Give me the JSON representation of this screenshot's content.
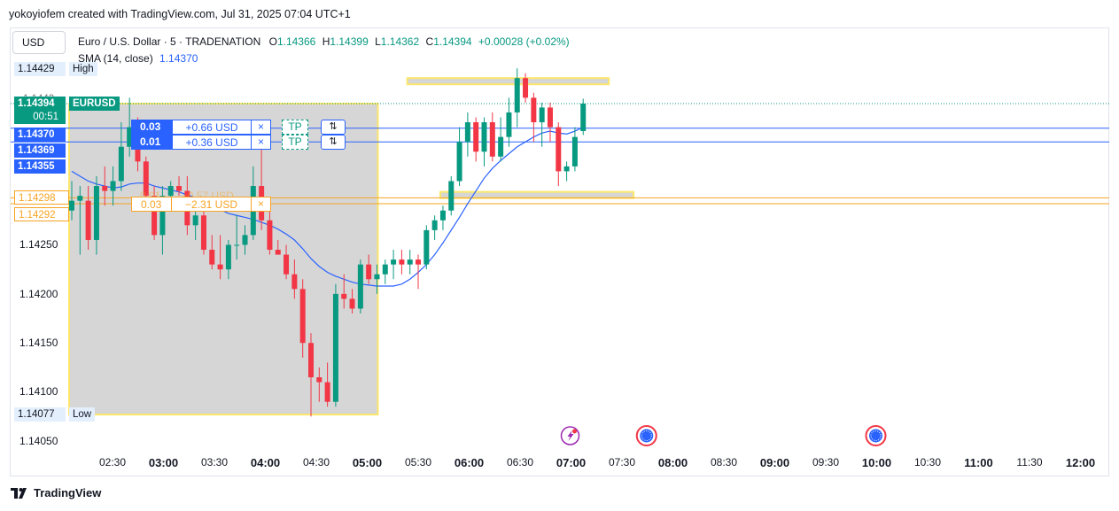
{
  "header": {
    "text": "yokoyiofem created with TradingView.com, Jul 31, 2025 07:04 UTC+1"
  },
  "toolbar": {
    "currency": "USD"
  },
  "legend": {
    "symbol": "Euro / U.S. Dollar · 5 · TRADENATION",
    "o_label": "O",
    "o_value": "1.14366",
    "h_label": "H",
    "h_value": "1.14399",
    "l_label": "L",
    "l_value": "1.14362",
    "c_label": "C",
    "c_value": "1.14394",
    "change": "+0.00028 (+0.02%)",
    "sma_label": "SMA (14, close)",
    "sma_value": "1.14370"
  },
  "price_scale": {
    "labels": [
      "1.14250",
      "1.14200",
      "1.14150",
      "1.14100",
      "1.14050"
    ],
    "high": {
      "price": "1.14429",
      "tag": "High"
    },
    "low": {
      "price": "1.14077",
      "tag": "Low"
    },
    "last": {
      "price": "1.14394",
      "countdown": "00:51",
      "tag": "EURUSD"
    },
    "sma": "1.14370",
    "blue_orders": [
      "1.14369",
      "1.14355"
    ],
    "orange_orders": [
      "1.14298",
      "1.14292"
    ],
    "hidden_label": "1.1442"
  },
  "orders": {
    "blue": [
      {
        "qty": "0.03",
        "pnl": "+0.66 USD",
        "close": "×",
        "tp": "TP",
        "rev": "⇅"
      },
      {
        "qty": "0.01",
        "pnl": "+0.36 USD",
        "close": "×",
        "tp": "TP",
        "rev": "⇅"
      }
    ],
    "orange": [
      {
        "qty": "0.03",
        "pnl": "−2.31 USD",
        "close": "×"
      }
    ],
    "orange_hidden": {
      "qty": "0.01",
      "pnl": "−0.57 USD"
    }
  },
  "time_axis": [
    "02:30",
    "03:00",
    "03:30",
    "04:00",
    "04:30",
    "05:00",
    "05:30",
    "06:00",
    "06:30",
    "07:00",
    "07:30",
    "08:00",
    "08:30",
    "09:00",
    "09:30",
    "10:00",
    "10:30",
    "11:00",
    "11:30",
    "12:00"
  ],
  "footer": {
    "brand": "TradingView"
  },
  "colors": {
    "up": "#089981",
    "down": "#f23645",
    "sma": "#2962ff",
    "order_blue": "#2962ff",
    "order_orange": "#f7a325",
    "zone": "#d6d6d6",
    "zone_border": "#fbe66b"
  },
  "chart_data": {
    "type": "candlestick",
    "symbol": "EURUSD",
    "interval": "5",
    "ylim": [
      1.1403,
      1.1446
    ],
    "indicators": [
      {
        "name": "SMA (14, close)",
        "last": 1.1437
      }
    ],
    "candles": [
      [
        1.14285,
        1.14315,
        1.14275,
        1.14295
      ],
      [
        1.14295,
        1.1431,
        1.1424,
        1.143
      ],
      [
        1.14295,
        1.1431,
        1.14245,
        1.14255
      ],
      [
        1.14255,
        1.1432,
        1.1424,
        1.1431
      ],
      [
        1.1431,
        1.1433,
        1.1429,
        1.14305
      ],
      [
        1.14305,
        1.1433,
        1.1429,
        1.14315
      ],
      [
        1.14315,
        1.14375,
        1.14305,
        1.1435
      ],
      [
        1.1435,
        1.144,
        1.1434,
        1.1437
      ],
      [
        1.1437,
        1.1438,
        1.14325,
        1.14335
      ],
      [
        1.14335,
        1.1434,
        1.1429,
        1.143
      ],
      [
        1.143,
        1.1431,
        1.14255,
        1.1426
      ],
      [
        1.1426,
        1.1431,
        1.1424,
        1.143
      ],
      [
        1.143,
        1.14315,
        1.1429,
        1.1431
      ],
      [
        1.1431,
        1.1432,
        1.143,
        1.14305
      ],
      [
        1.14305,
        1.1432,
        1.1426,
        1.1427
      ],
      [
        1.1427,
        1.1429,
        1.14255,
        1.1428
      ],
      [
        1.1428,
        1.14295,
        1.1424,
        1.14245
      ],
      [
        1.14245,
        1.1426,
        1.14225,
        1.1423
      ],
      [
        1.1423,
        1.1426,
        1.14215,
        1.14225
      ],
      [
        1.14225,
        1.14255,
        1.14215,
        1.1425
      ],
      [
        1.1425,
        1.1428,
        1.14235,
        1.1425
      ],
      [
        1.1425,
        1.1427,
        1.1424,
        1.1426
      ],
      [
        1.1426,
        1.1433,
        1.14255,
        1.1431
      ],
      [
        1.1431,
        1.1436,
        1.14265,
        1.14275
      ],
      [
        1.14275,
        1.14285,
        1.1424,
        1.14245
      ],
      [
        1.14245,
        1.14255,
        1.1424,
        1.1424
      ],
      [
        1.1424,
        1.1425,
        1.14215,
        1.1422
      ],
      [
        1.1422,
        1.14235,
        1.14195,
        1.14205
      ],
      [
        1.14205,
        1.14215,
        1.14135,
        1.1415
      ],
      [
        1.1415,
        1.1416,
        1.14075,
        1.14115
      ],
      [
        1.14115,
        1.14125,
        1.1409,
        1.1411
      ],
      [
        1.1411,
        1.1413,
        1.14085,
        1.1409
      ],
      [
        1.1409,
        1.1421,
        1.14085,
        1.142
      ],
      [
        1.142,
        1.1422,
        1.14185,
        1.14195
      ],
      [
        1.14195,
        1.14205,
        1.1418,
        1.14185
      ],
      [
        1.14185,
        1.14235,
        1.1418,
        1.1423
      ],
      [
        1.1423,
        1.1424,
        1.1421,
        1.14215
      ],
      [
        1.14215,
        1.1423,
        1.142,
        1.1422
      ],
      [
        1.1422,
        1.14235,
        1.1421,
        1.1423
      ],
      [
        1.1423,
        1.14245,
        1.14215,
        1.14235
      ],
      [
        1.14235,
        1.14245,
        1.1422,
        1.1423
      ],
      [
        1.1423,
        1.14245,
        1.1422,
        1.14235
      ],
      [
        1.14235,
        1.1424,
        1.14205,
        1.1423
      ],
      [
        1.1423,
        1.1427,
        1.14225,
        1.14265
      ],
      [
        1.14265,
        1.1428,
        1.14255,
        1.14275
      ],
      [
        1.14275,
        1.1429,
        1.14265,
        1.14285
      ],
      [
        1.14285,
        1.1432,
        1.1428,
        1.14315
      ],
      [
        1.14315,
        1.1437,
        1.1431,
        1.14355
      ],
      [
        1.14355,
        1.14385,
        1.1434,
        1.14375
      ],
      [
        1.14375,
        1.1438,
        1.14335,
        1.14345
      ],
      [
        1.14345,
        1.1438,
        1.1433,
        1.14375
      ],
      [
        1.14375,
        1.14385,
        1.14335,
        1.1434
      ],
      [
        1.1434,
        1.1438,
        1.14335,
        1.1436
      ],
      [
        1.1436,
        1.144,
        1.1435,
        1.14385
      ],
      [
        1.14385,
        1.1443,
        1.1437,
        1.1442
      ],
      [
        1.1442,
        1.14425,
        1.14395,
        1.144
      ],
      [
        1.144,
        1.14405,
        1.14355,
        1.14375
      ],
      [
        1.14375,
        1.14395,
        1.1435,
        1.1439
      ],
      [
        1.1439,
        1.14395,
        1.14355,
        1.1437
      ],
      [
        1.1437,
        1.14375,
        1.1431,
        1.14325
      ],
      [
        1.14325,
        1.14335,
        1.14315,
        1.1433
      ],
      [
        1.1433,
        1.1437,
        1.14325,
        1.1436
      ],
      [
        1.14366,
        1.14399,
        1.14362,
        1.14394
      ]
    ],
    "sma": [
      1.14325,
      1.1432,
      1.14315,
      1.14312,
      1.1431,
      1.14308,
      1.14309,
      1.14312,
      1.14313,
      1.14313,
      1.1431,
      1.14308,
      1.14306,
      1.14304,
      1.14301,
      1.14298,
      1.14294,
      1.1429,
      1.14286,
      1.14282,
      1.1428,
      1.14278,
      1.14276,
      1.14273,
      1.1427,
      1.14266,
      1.14261,
      1.14255,
      1.14246,
      1.14236,
      1.14228,
      1.14222,
      1.14218,
      1.14215,
      1.14212,
      1.1421,
      1.14209,
      1.14208,
      1.14208,
      1.14208,
      1.1421,
      1.14215,
      1.14222,
      1.1423,
      1.1424,
      1.14252,
      1.14265,
      1.14278,
      1.14292,
      1.14305,
      1.14318,
      1.14328,
      1.14336,
      1.14343,
      1.1435,
      1.14355,
      1.1436,
      1.14364,
      1.14366,
      1.14364,
      1.14363,
      1.14366,
      1.1437
    ],
    "zones": [
      {
        "type": "rectangle",
        "x0": 0,
        "x1": 37,
        "y0": 1.14077,
        "y1": 1.14394
      },
      {
        "type": "band",
        "x0": 41,
        "x1": 65,
        "y0": 1.14429,
        "y1": 1.1442
      },
      {
        "type": "band",
        "x0": 45,
        "x1": 68,
        "y0": 1.14312,
        "y1": 1.14304
      }
    ],
    "horizontal_lines": [
      {
        "price": 1.14394,
        "style": "dotted",
        "color": "#089981"
      },
      {
        "price": 1.14369,
        "style": "solid",
        "color": "#2962ff"
      },
      {
        "price": 1.14355,
        "style": "solid",
        "color": "#2962ff"
      },
      {
        "price": 1.14298,
        "style": "solid",
        "color": "#f7a325"
      },
      {
        "price": 1.14292,
        "style": "solid",
        "color": "#f7a325"
      }
    ],
    "events": [
      {
        "type": "flash-icon",
        "time": "07:00"
      },
      {
        "type": "clock-icon",
        "time": "07:45"
      },
      {
        "type": "clock-icon",
        "time": "10:00"
      }
    ]
  }
}
